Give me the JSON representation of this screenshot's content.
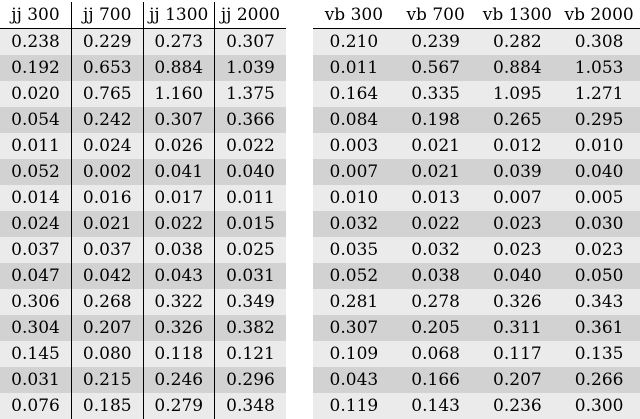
{
  "left_table": {
    "headers": [
      "jj 300",
      "jj 700",
      "jj 1300",
      "jj 2000"
    ],
    "rows": [
      [
        "0.238",
        "0.229",
        "0.273",
        "0.307"
      ],
      [
        "0.192",
        "0.653",
        "0.884",
        "1.039"
      ],
      [
        "0.020",
        "0.765",
        "1.160",
        "1.375"
      ],
      [
        "0.054",
        "0.242",
        "0.307",
        "0.366"
      ],
      [
        "0.011",
        "0.024",
        "0.026",
        "0.022"
      ],
      [
        "0.052",
        "0.002",
        "0.041",
        "0.040"
      ],
      [
        "0.014",
        "0.016",
        "0.017",
        "0.011"
      ],
      [
        "0.024",
        "0.021",
        "0.022",
        "0.015"
      ],
      [
        "0.037",
        "0.037",
        "0.038",
        "0.025"
      ],
      [
        "0.047",
        "0.042",
        "0.043",
        "0.031"
      ],
      [
        "0.306",
        "0.268",
        "0.322",
        "0.349"
      ],
      [
        "0.304",
        "0.207",
        "0.326",
        "0.382"
      ],
      [
        "0.145",
        "0.080",
        "0.118",
        "0.121"
      ],
      [
        "0.031",
        "0.215",
        "0.246",
        "0.296"
      ],
      [
        "0.076",
        "0.185",
        "0.279",
        "0.348"
      ]
    ]
  },
  "right_table": {
    "headers": [
      "vb 300",
      "vb 700",
      "vb 1300",
      "vb 2000"
    ],
    "rows": [
      [
        "0.210",
        "0.239",
        "0.282",
        "0.308"
      ],
      [
        "0.011",
        "0.567",
        "0.884",
        "1.053"
      ],
      [
        "0.164",
        "0.335",
        "1.095",
        "1.271"
      ],
      [
        "0.084",
        "0.198",
        "0.265",
        "0.295"
      ],
      [
        "0.003",
        "0.021",
        "0.012",
        "0.010"
      ],
      [
        "0.007",
        "0.021",
        "0.039",
        "0.040"
      ],
      [
        "0.010",
        "0.013",
        "0.007",
        "0.005"
      ],
      [
        "0.032",
        "0.022",
        "0.023",
        "0.030"
      ],
      [
        "0.035",
        "0.032",
        "0.023",
        "0.023"
      ],
      [
        "0.052",
        "0.038",
        "0.040",
        "0.050"
      ],
      [
        "0.281",
        "0.278",
        "0.326",
        "0.343"
      ],
      [
        "0.307",
        "0.205",
        "0.311",
        "0.361"
      ],
      [
        "0.109",
        "0.068",
        "0.117",
        "0.135"
      ],
      [
        "0.043",
        "0.166",
        "0.207",
        "0.266"
      ],
      [
        "0.119",
        "0.143",
        "0.236",
        "0.300"
      ]
    ]
  },
  "colors": {
    "row_odd": "#ebebeb",
    "row_even": "#d2d2d2",
    "rule": "#000000"
  }
}
